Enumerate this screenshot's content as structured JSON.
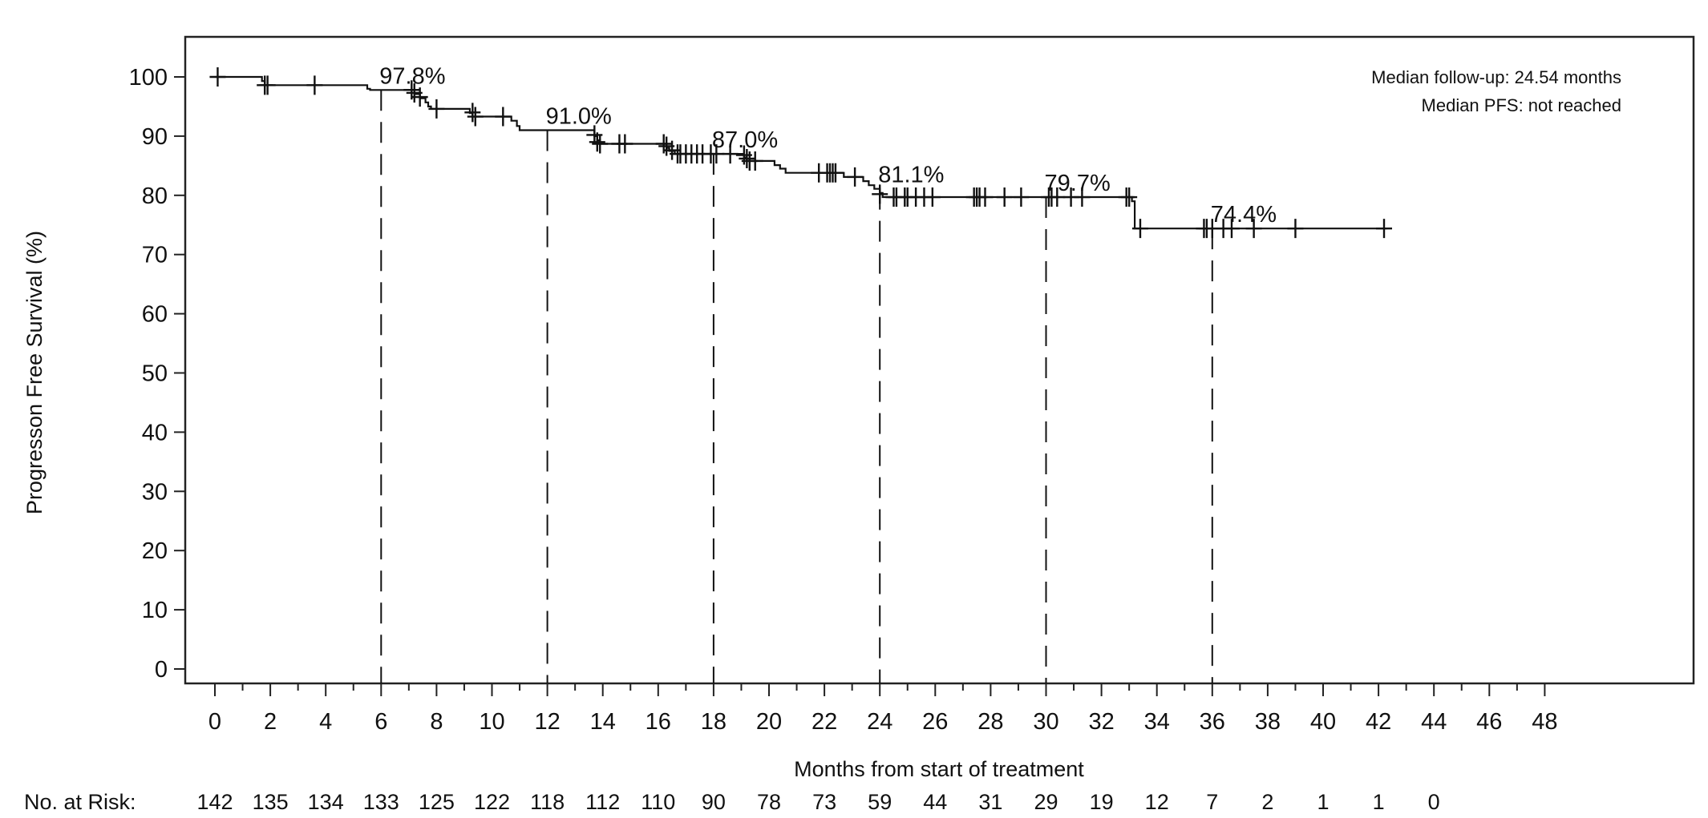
{
  "chart_data": {
    "type": "line",
    "subtype": "kaplan-meier",
    "title": "",
    "xlabel": "Months from start of treatment",
    "ylabel": "Progresson Free Survival (%)",
    "xlim": [
      0,
      48
    ],
    "ylim": [
      0,
      100
    ],
    "xticks": [
      0,
      2,
      4,
      6,
      8,
      10,
      12,
      14,
      16,
      18,
      20,
      22,
      24,
      26,
      28,
      30,
      32,
      34,
      36,
      38,
      40,
      42,
      44,
      46,
      48
    ],
    "yticks": [
      0,
      10,
      20,
      30,
      40,
      50,
      60,
      70,
      80,
      90,
      100
    ],
    "grid": false,
    "legend": null,
    "info_text": [
      "Median follow-up: 24.54 months",
      "Median PFS: not reached"
    ],
    "landmarks": [
      {
        "month": 6,
        "value": 97.8,
        "label": "97.8%"
      },
      {
        "month": 12,
        "value": 91.0,
        "label": "91.0%"
      },
      {
        "month": 18,
        "value": 87.0,
        "label": "87.0%"
      },
      {
        "month": 24,
        "value": 81.1,
        "label": "81.1%"
      },
      {
        "month": 30,
        "value": 79.7,
        "label": "79.7%"
      },
      {
        "month": 36,
        "value": 74.4,
        "label": "74.4%"
      }
    ],
    "curve": {
      "steps": [
        [
          0,
          100
        ],
        [
          1.7,
          100
        ],
        [
          1.7,
          99.3
        ],
        [
          1.8,
          98.6
        ],
        [
          5.5,
          98.6
        ],
        [
          5.5,
          98.0
        ],
        [
          5.6,
          97.8
        ],
        [
          7.1,
          97.8
        ],
        [
          7.2,
          97.1
        ],
        [
          7.4,
          96.4
        ],
        [
          7.6,
          95.7
        ],
        [
          7.7,
          95.0
        ],
        [
          7.8,
          94.6
        ],
        [
          9.2,
          94.6
        ],
        [
          9.2,
          93.9
        ],
        [
          9.3,
          93.3
        ],
        [
          10.6,
          93.3
        ],
        [
          10.7,
          92.6
        ],
        [
          10.9,
          91.7
        ],
        [
          11.0,
          91.0
        ],
        [
          13.6,
          91.0
        ],
        [
          13.7,
          90.0
        ],
        [
          13.8,
          89.3
        ],
        [
          13.9,
          88.7
        ],
        [
          16.2,
          88.7
        ],
        [
          16.3,
          88.0
        ],
        [
          16.4,
          87.5
        ],
        [
          16.6,
          87.0
        ],
        [
          19.0,
          87.0
        ],
        [
          19.1,
          86.4
        ],
        [
          19.2,
          85.8
        ],
        [
          20.1,
          85.8
        ],
        [
          20.2,
          85.1
        ],
        [
          20.4,
          84.5
        ],
        [
          20.6,
          83.8
        ],
        [
          22.2,
          83.8
        ],
        [
          22.6,
          83.8
        ],
        [
          22.7,
          83.1
        ],
        [
          23.3,
          83.1
        ],
        [
          23.4,
          82.4
        ],
        [
          23.6,
          81.7
        ],
        [
          23.8,
          81.1
        ],
        [
          24.0,
          80.4
        ],
        [
          24.1,
          79.7
        ],
        [
          33.0,
          79.7
        ],
        [
          33.1,
          79.0
        ],
        [
          33.2,
          74.4
        ],
        [
          42.3,
          74.4
        ]
      ],
      "censor_marks": [
        [
          0.1,
          100
        ],
        [
          1.8,
          98.6
        ],
        [
          1.9,
          98.6
        ],
        [
          3.6,
          98.6
        ],
        [
          7.1,
          97.8
        ],
        [
          7.2,
          97.3
        ],
        [
          7.4,
          96.6
        ],
        [
          8.0,
          94.6
        ],
        [
          9.3,
          94.0
        ],
        [
          9.4,
          93.3
        ],
        [
          10.4,
          93.3
        ],
        [
          13.7,
          90.2
        ],
        [
          13.8,
          89.0
        ],
        [
          13.9,
          88.7
        ],
        [
          14.6,
          88.7
        ],
        [
          14.8,
          88.7
        ],
        [
          16.2,
          88.7
        ],
        [
          16.3,
          88.3
        ],
        [
          16.5,
          87.6
        ],
        [
          16.7,
          87.0
        ],
        [
          16.8,
          87.0
        ],
        [
          17.0,
          87.0
        ],
        [
          17.2,
          87.0
        ],
        [
          17.4,
          87.0
        ],
        [
          17.6,
          87.0
        ],
        [
          17.9,
          87.0
        ],
        [
          18.1,
          87.0
        ],
        [
          18.6,
          87.0
        ],
        [
          19.1,
          86.8
        ],
        [
          19.2,
          86.2
        ],
        [
          19.3,
          85.8
        ],
        [
          19.5,
          85.8
        ],
        [
          21.8,
          83.8
        ],
        [
          22.1,
          83.8
        ],
        [
          22.2,
          83.8
        ],
        [
          22.3,
          83.8
        ],
        [
          22.4,
          83.8
        ],
        [
          23.1,
          83.1
        ],
        [
          24.0,
          80.2
        ],
        [
          24.5,
          79.7
        ],
        [
          24.6,
          79.7
        ],
        [
          24.9,
          79.7
        ],
        [
          25.0,
          79.7
        ],
        [
          25.3,
          79.7
        ],
        [
          25.6,
          79.7
        ],
        [
          25.9,
          79.7
        ],
        [
          27.4,
          79.7
        ],
        [
          27.5,
          79.7
        ],
        [
          27.6,
          79.7
        ],
        [
          27.8,
          79.7
        ],
        [
          28.5,
          79.7
        ],
        [
          29.1,
          79.7
        ],
        [
          30.1,
          79.7
        ],
        [
          30.2,
          79.7
        ],
        [
          30.4,
          79.7
        ],
        [
          30.9,
          79.7
        ],
        [
          31.3,
          79.7
        ],
        [
          32.9,
          79.7
        ],
        [
          33.0,
          79.7
        ],
        [
          33.4,
          74.4
        ],
        [
          35.7,
          74.4
        ],
        [
          35.8,
          74.4
        ],
        [
          36.0,
          74.4
        ],
        [
          36.4,
          74.4
        ],
        [
          36.7,
          74.4
        ],
        [
          37.5,
          74.4
        ],
        [
          39.0,
          74.4
        ],
        [
          42.2,
          74.4
        ]
      ]
    },
    "risk_table": {
      "label": "No. at Risk:",
      "months": [
        0,
        2,
        4,
        6,
        8,
        10,
        12,
        14,
        16,
        18,
        20,
        22,
        24,
        26,
        28,
        30,
        32,
        34,
        36,
        38,
        40,
        42,
        44
      ],
      "counts": [
        142,
        135,
        134,
        133,
        125,
        122,
        118,
        112,
        110,
        90,
        78,
        73,
        59,
        44,
        31,
        29,
        19,
        12,
        7,
        2,
        1,
        1,
        0
      ]
    }
  },
  "colors": {
    "line": "#111111",
    "frame": "#222222",
    "background": "#ffffff"
  }
}
